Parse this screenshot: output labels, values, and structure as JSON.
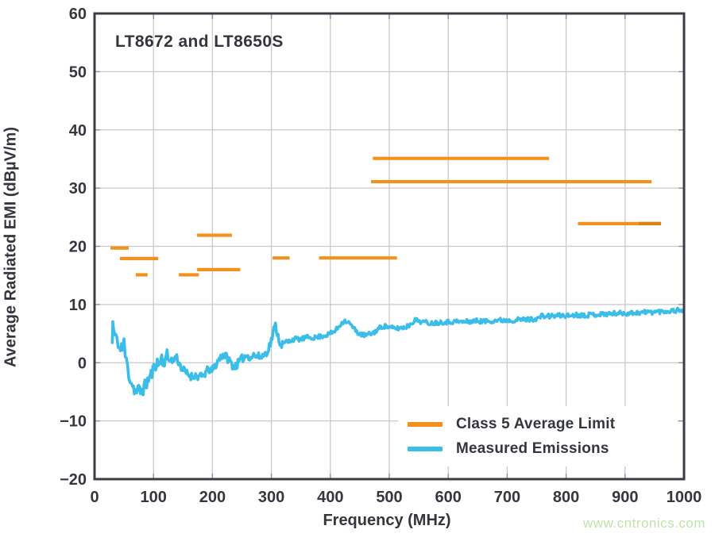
{
  "watermark": {
    "text": "www.cntronics.com",
    "color": "#bfe3a8"
  },
  "frame": {
    "color": "#3a3e44",
    "grid_color": "#c9c9c9",
    "tick_color": "#8f9298",
    "text_color": "#34383e"
  },
  "chart_data": {
    "type": "line",
    "title": "LT8672 and LT8650S",
    "xlabel": "Frequency (MHz)",
    "ylabel": "Average Radiated EMI (dBµV/m)",
    "xlim": [
      0,
      1000
    ],
    "ylim": [
      -20,
      60
    ],
    "x_ticks": [
      0,
      100,
      200,
      300,
      400,
      500,
      600,
      700,
      800,
      900,
      1000
    ],
    "y_ticks": [
      -20,
      -10,
      0,
      10,
      20,
      30,
      40,
      50,
      60
    ],
    "grid": true,
    "legend": {
      "position": "bottom-right",
      "entries": [
        {
          "label": "Class 5 Average Limit",
          "color": "#f2921d"
        },
        {
          "label": "Measured Emissions",
          "color": "#3abde8"
        }
      ]
    },
    "series": [
      {
        "name": "Class 5 Average Limit",
        "type": "segments",
        "color": "#f2921d",
        "dark_color": "#e0800f",
        "units": [
          "MHz_start",
          "MHz_end",
          "dBuV_per_m"
        ],
        "segments": [
          [
            27,
            58,
            19.7
          ],
          [
            43,
            108,
            17.9
          ],
          [
            70,
            90,
            15.1
          ],
          [
            143,
            177,
            15.1
          ],
          [
            174,
            233,
            21.9
          ],
          [
            174,
            247,
            16.0
          ],
          [
            302,
            331,
            18.0
          ],
          [
            381,
            513,
            18.0
          ],
          [
            472,
            771,
            35.1
          ],
          [
            469,
            945,
            31.1
          ],
          [
            820,
            961,
            23.9
          ],
          [
            923,
            961,
            23.9,
            "dark"
          ]
        ]
      },
      {
        "name": "Measured Emissions",
        "type": "line",
        "color": "#3abde8",
        "units": [
          "MHz",
          "dBuV_per_m"
        ],
        "render_noise": {
          "seed": 11,
          "step_mhz": 1.5,
          "amp_low": 1.15,
          "amp_mid": 0.7,
          "amp_high": 0.4
        },
        "points": [
          [
            30,
            3.2
          ],
          [
            31,
            7.0
          ],
          [
            32,
            5.8
          ],
          [
            34,
            4.6
          ],
          [
            36,
            4.1
          ],
          [
            38,
            4.3
          ],
          [
            40,
            3.6
          ],
          [
            42,
            2.6
          ],
          [
            44,
            1.8
          ],
          [
            46,
            3.4
          ],
          [
            48,
            2.2
          ],
          [
            50,
            3.3
          ],
          [
            52,
            1.2
          ],
          [
            54,
            0.4
          ],
          [
            56,
            -0.8
          ],
          [
            58,
            -1.8
          ],
          [
            60,
            -2.6
          ],
          [
            63,
            -3.4
          ],
          [
            66,
            -4.2
          ],
          [
            69,
            -4.8
          ],
          [
            72,
            -5.0
          ],
          [
            75,
            -4.6
          ],
          [
            78,
            -4.9
          ],
          [
            81,
            -4.7
          ],
          [
            84,
            -4.3
          ],
          [
            87,
            -3.8
          ],
          [
            90,
            -3.2
          ],
          [
            93,
            -2.6
          ],
          [
            96,
            -2.1
          ],
          [
            99,
            -1.4
          ],
          [
            102,
            -0.6
          ],
          [
            105,
            0.2
          ],
          [
            108,
            -0.5
          ],
          [
            111,
            0.3
          ],
          [
            114,
            0.8
          ],
          [
            117,
            0.2
          ],
          [
            120,
            0.7
          ],
          [
            123,
            1.1
          ],
          [
            126,
            0.4
          ],
          [
            129,
            0.9
          ],
          [
            132,
            0.1
          ],
          [
            135,
            0.6
          ],
          [
            138,
            1.3
          ],
          [
            141,
            0.5
          ],
          [
            144,
            -0.2
          ],
          [
            147,
            -0.8
          ],
          [
            150,
            -1.2
          ],
          [
            154,
            -1.6
          ],
          [
            158,
            -2.0
          ],
          [
            162,
            -2.2
          ],
          [
            166,
            -2.4
          ],
          [
            170,
            -2.1
          ],
          [
            174,
            -2.4
          ],
          [
            178,
            -2.3
          ],
          [
            182,
            -2.5
          ],
          [
            186,
            -2.0
          ],
          [
            190,
            -1.5
          ],
          [
            194,
            -1.1
          ],
          [
            198,
            -1.5
          ],
          [
            202,
            -0.9
          ],
          [
            206,
            -0.3
          ],
          [
            210,
            0.4
          ],
          [
            214,
            1.0
          ],
          [
            218,
            1.4
          ],
          [
            222,
            1.2
          ],
          [
            226,
            0.7
          ],
          [
            230,
            0.2
          ],
          [
            234,
            -0.4
          ],
          [
            238,
            -0.6
          ],
          [
            242,
            -0.3
          ],
          [
            246,
            0.2
          ],
          [
            250,
            0.7
          ],
          [
            255,
            1.1
          ],
          [
            260,
            1.2
          ],
          [
            265,
            1.0
          ],
          [
            270,
            1.3
          ],
          [
            275,
            1.1
          ],
          [
            280,
            1.0
          ],
          [
            285,
            1.2
          ],
          [
            290,
            1.6
          ],
          [
            295,
            2.4
          ],
          [
            300,
            3.8
          ],
          [
            304,
            5.6
          ],
          [
            307,
            6.4
          ],
          [
            310,
            5.2
          ],
          [
            313,
            3.9
          ],
          [
            316,
            3.2
          ],
          [
            320,
            3.1
          ],
          [
            325,
            3.5
          ],
          [
            330,
            3.7
          ],
          [
            336,
            4.0
          ],
          [
            342,
            4.1
          ],
          [
            350,
            4.0
          ],
          [
            358,
            4.3
          ],
          [
            366,
            4.4
          ],
          [
            374,
            4.3
          ],
          [
            382,
            4.5
          ],
          [
            390,
            4.7
          ],
          [
            398,
            4.9
          ],
          [
            406,
            5.3
          ],
          [
            412,
            5.9
          ],
          [
            418,
            6.7
          ],
          [
            423,
            7.2
          ],
          [
            428,
            7.1
          ],
          [
            433,
            6.7
          ],
          [
            438,
            6.1
          ],
          [
            443,
            5.5
          ],
          [
            448,
            5.1
          ],
          [
            454,
            4.8
          ],
          [
            460,
            4.7
          ],
          [
            466,
            4.9
          ],
          [
            472,
            5.1
          ],
          [
            478,
            5.5
          ],
          [
            484,
            6.0
          ],
          [
            490,
            6.3
          ],
          [
            496,
            6.2
          ],
          [
            502,
            6.0
          ],
          [
            508,
            5.9
          ],
          [
            514,
            5.9
          ],
          [
            520,
            6.0
          ],
          [
            526,
            6.1
          ],
          [
            532,
            6.3
          ],
          [
            538,
            6.9
          ],
          [
            544,
            7.3
          ],
          [
            550,
            7.2
          ],
          [
            556,
            7.0
          ],
          [
            564,
            6.9
          ],
          [
            572,
            6.8
          ],
          [
            580,
            6.9
          ],
          [
            590,
            7.0
          ],
          [
            600,
            7.0
          ],
          [
            612,
            7.1
          ],
          [
            624,
            7.0
          ],
          [
            636,
            7.1
          ],
          [
            648,
            7.2
          ],
          [
            660,
            7.1
          ],
          [
            672,
            7.2
          ],
          [
            684,
            7.3
          ],
          [
            696,
            7.3
          ],
          [
            708,
            7.3
          ],
          [
            720,
            7.4
          ],
          [
            732,
            7.4
          ],
          [
            744,
            7.5
          ],
          [
            752,
            7.6
          ],
          [
            758,
            8.0
          ],
          [
            766,
            8.0
          ],
          [
            776,
            8.0
          ],
          [
            786,
            8.1
          ],
          [
            796,
            8.1
          ],
          [
            806,
            8.1
          ],
          [
            816,
            8.2
          ],
          [
            826,
            8.2
          ],
          [
            836,
            8.2
          ],
          [
            846,
            8.3
          ],
          [
            856,
            8.3
          ],
          [
            866,
            8.4
          ],
          [
            876,
            8.4
          ],
          [
            886,
            8.5
          ],
          [
            896,
            8.5
          ],
          [
            906,
            8.5
          ],
          [
            916,
            8.6
          ],
          [
            926,
            8.6
          ],
          [
            936,
            8.7
          ],
          [
            946,
            8.7
          ],
          [
            956,
            8.8
          ],
          [
            966,
            8.8
          ],
          [
            976,
            8.9
          ],
          [
            986,
            9.0
          ],
          [
            1000,
            9.1
          ]
        ]
      }
    ]
  }
}
